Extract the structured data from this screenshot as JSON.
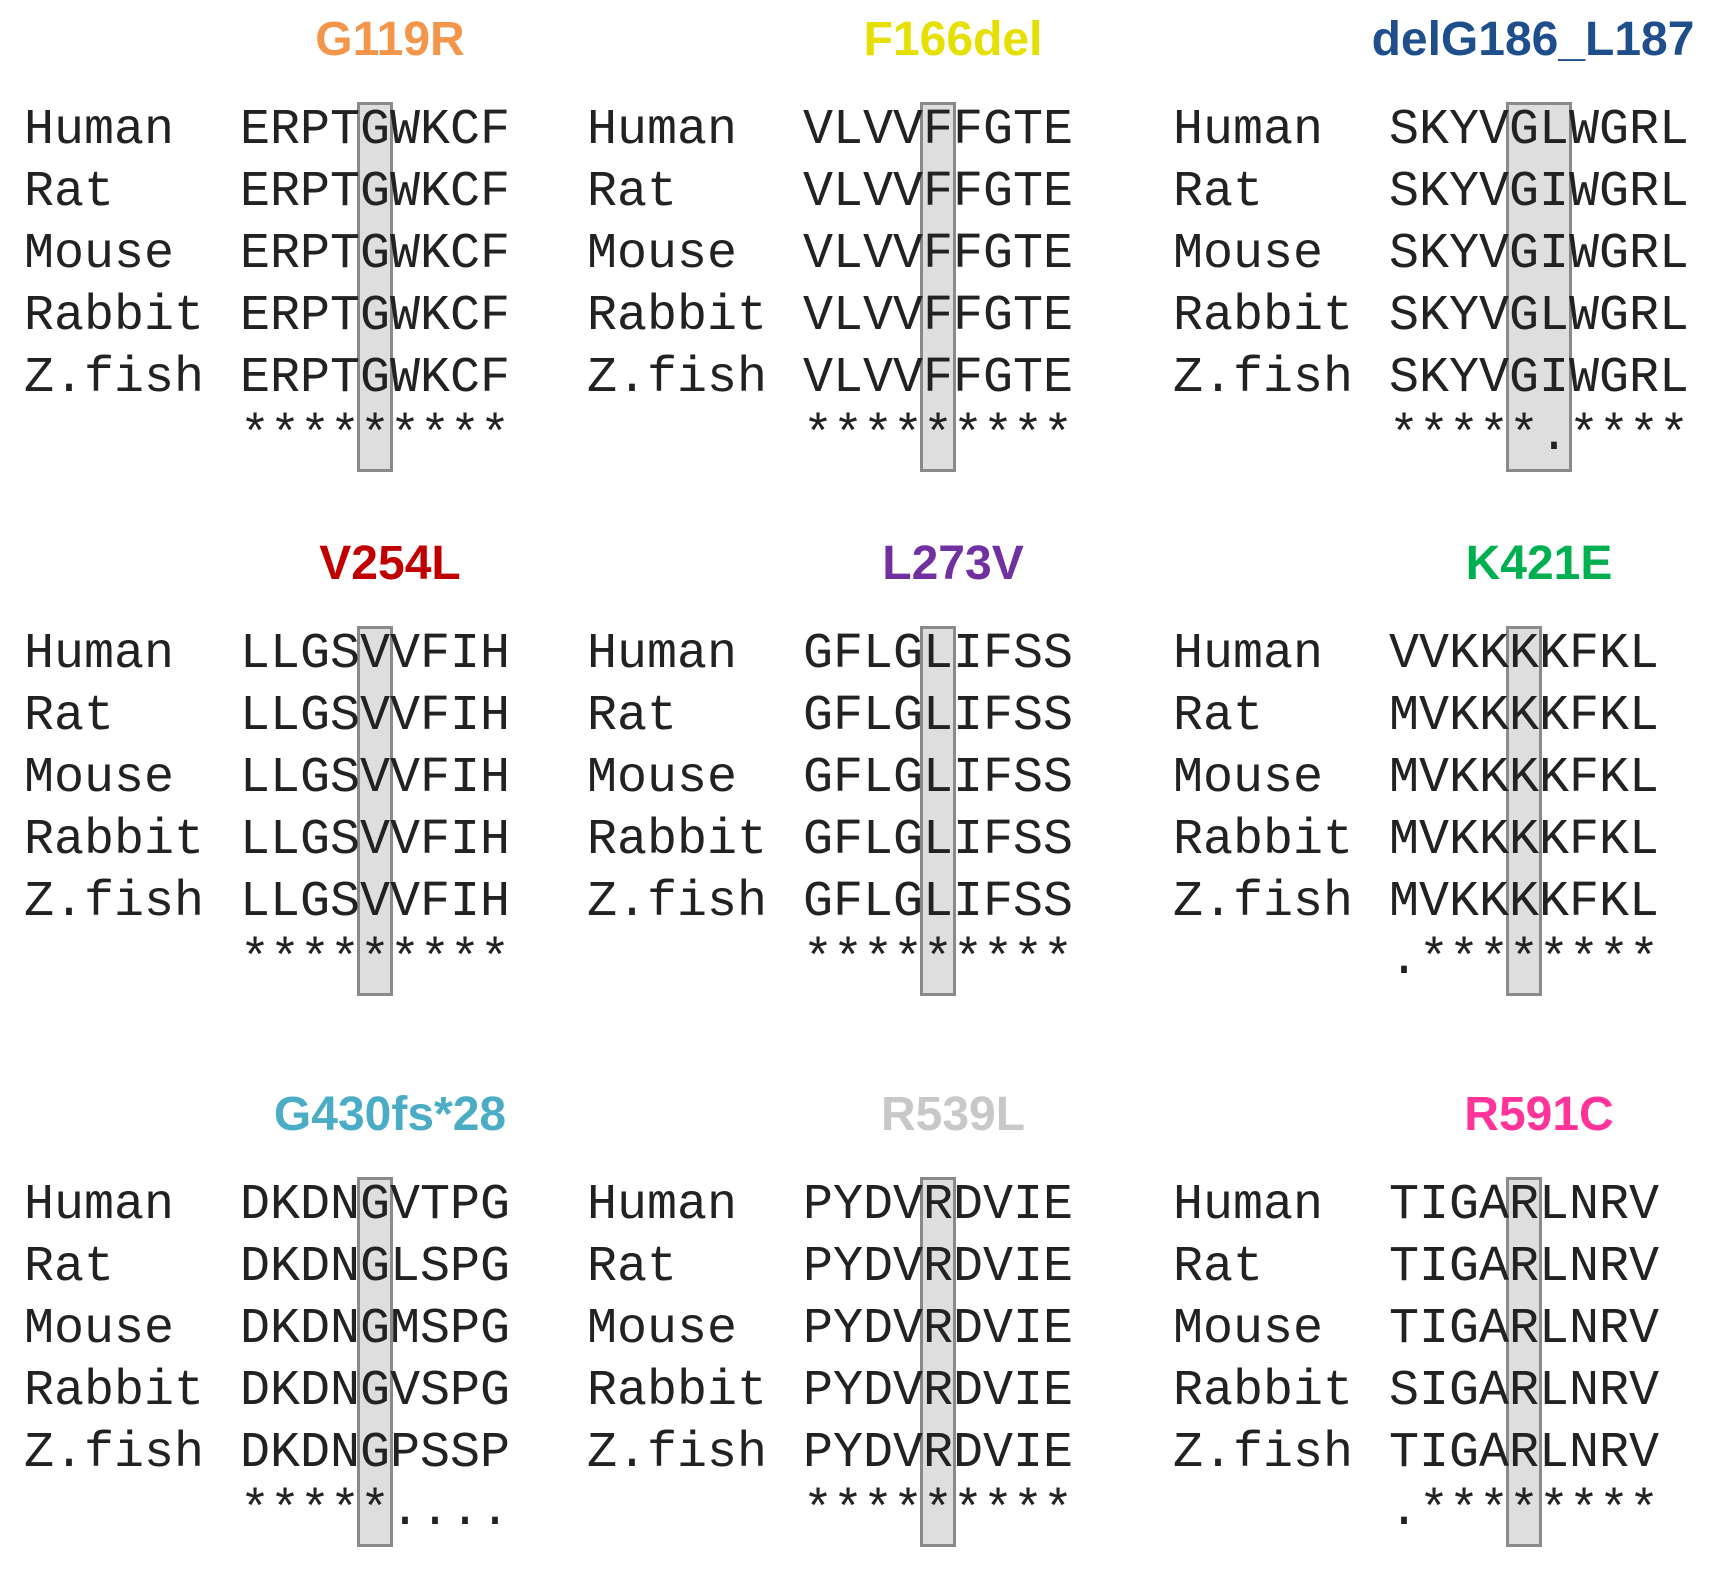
{
  "species": [
    "Human",
    "Rat",
    "Mouse",
    "Rabbit",
    "Z.fish"
  ],
  "colors": {
    "box_fill": "#dedede",
    "box_border": "#8a8a8a"
  },
  "panels": [
    {
      "title": "G119R",
      "color": "#f3954a",
      "seqs": [
        "ERPTGWKCF",
        "ERPTGWKCF",
        "ERPTGWKCF",
        "ERPTGWKCF",
        "ERPTGWKCF"
      ],
      "conservation": "*********",
      "highlight_col": 4,
      "highlight_span": 1
    },
    {
      "title": "F166del",
      "color": "#e6e000",
      "seqs": [
        "VLVVFFGTE",
        "VLVVFFGTE",
        "VLVVFFGTE",
        "VLVVFFGTE",
        "VLVVFFGTE"
      ],
      "conservation": "*********",
      "highlight_col": 4,
      "highlight_span": 1
    },
    {
      "title": "delG186_L187",
      "color": "#1f4e8c",
      "seqs": [
        "SKYVGLWGRL",
        "SKYVGIWGRL",
        "SKYVGIWGRL",
        "SKYVGLWGRL",
        "SKYVGIWGRL"
      ],
      "conservation": "*****.****",
      "highlight_col": 4,
      "highlight_span": 2
    },
    {
      "title": "V254L",
      "color": "#c00000",
      "seqs": [
        "LLGSVVFIH",
        "LLGSVVFIH",
        "LLGSVVFIH",
        "LLGSVVFIH",
        "LLGSVVFIH"
      ],
      "conservation": "*********",
      "highlight_col": 4,
      "highlight_span": 1
    },
    {
      "title": "L273V",
      "color": "#7030a0",
      "seqs": [
        "GFLGLIFSS",
        "GFLGLIFSS",
        "GFLGLIFSS",
        "GFLGLIFSS",
        "GFLGLIFSS"
      ],
      "conservation": "*********",
      "highlight_col": 4,
      "highlight_span": 1
    },
    {
      "title": "K421E",
      "color": "#00b050",
      "seqs": [
        "VVKKKKFKL",
        "MVKKKKFKL",
        "MVKKKKFKL",
        "MVKKKKFKL",
        "MVKKKKFKL"
      ],
      "conservation": ".********",
      "highlight_col": 4,
      "highlight_span": 1
    },
    {
      "title": "G430fs*28",
      "color": "#4bacc6",
      "seqs": [
        "DKDNGVTPG",
        "DKDNGLSPG",
        "DKDNGMSPG",
        "DKDNGVSPG",
        "DKDNGPSSP"
      ],
      "conservation": "*****....",
      "highlight_col": 4,
      "highlight_span": 1
    },
    {
      "title": "R539L",
      "color": "#c8c8c8",
      "seqs": [
        "PYDVRDVIE",
        "PYDVRDVIE",
        "PYDVRDVIE",
        "PYDVRDVIE",
        "PYDVRDVIE"
      ],
      "conservation": "*********",
      "highlight_col": 4,
      "highlight_span": 1
    },
    {
      "title": "R591C",
      "color": "#ff3399",
      "seqs": [
        "TIGARLNRV",
        "TIGARLNRV",
        "TIGARLNRV",
        "SIGARLNRV",
        "TIGARLNRV"
      ],
      "conservation": ".********",
      "highlight_col": 4,
      "highlight_span": 1
    }
  ]
}
